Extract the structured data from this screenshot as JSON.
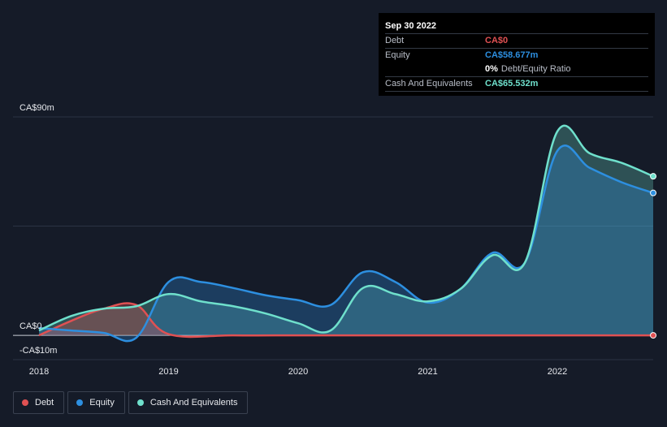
{
  "tooltip": {
    "date": "Sep 30 2022",
    "debt_label": "Debt",
    "debt_value": "CA$0",
    "equity_label": "Equity",
    "equity_value": "CA$58.677m",
    "ratio_value": "0%",
    "ratio_label": "Debt/Equity Ratio",
    "cash_label": "Cash And Equivalents",
    "cash_value": "CA$65.532m"
  },
  "legend": [
    {
      "name": "legend-debt",
      "label": "Debt",
      "color": "#e05153"
    },
    {
      "name": "legend-equity",
      "label": "Equity",
      "color": "#2d8fe0"
    },
    {
      "name": "legend-cash",
      "label": "Cash And Equivalents",
      "color": "#6fe0cc"
    }
  ],
  "chart_data": {
    "type": "area",
    "title": "",
    "xlabel": "",
    "ylabel": "",
    "ylim": [
      -10,
      90
    ],
    "y_tick_labels": [
      {
        "value": 90,
        "label": "CA$90m"
      },
      {
        "value": 0,
        "label": "CA$0"
      },
      {
        "value": -10,
        "label": "-CA$10m"
      }
    ],
    "x_ticks": [
      {
        "value": 2018,
        "label": "2018"
      },
      {
        "value": 2019,
        "label": "2019"
      },
      {
        "value": 2020,
        "label": "2020"
      },
      {
        "value": 2021,
        "label": "2021"
      },
      {
        "value": 2022,
        "label": "2022"
      }
    ],
    "xlim": [
      2017.96,
      2022.74
    ],
    "series": [
      {
        "name": "Cash And Equivalents",
        "color": "#6fe0cc",
        "points": [
          [
            2018.0,
            2.0
          ],
          [
            2018.25,
            8.0
          ],
          [
            2018.5,
            11.0
          ],
          [
            2018.75,
            12.0
          ],
          [
            2019.0,
            17.0
          ],
          [
            2019.25,
            14.0
          ],
          [
            2019.5,
            12.0
          ],
          [
            2019.75,
            9.0
          ],
          [
            2020.0,
            5.0
          ],
          [
            2020.25,
            2.0
          ],
          [
            2020.5,
            19.5
          ],
          [
            2020.75,
            17.0
          ],
          [
            2021.0,
            14.0
          ],
          [
            2021.25,
            19.0
          ],
          [
            2021.5,
            33.0
          ],
          [
            2021.75,
            30.0
          ],
          [
            2022.0,
            84.0
          ],
          [
            2022.25,
            75.0
          ],
          [
            2022.5,
            71.0
          ],
          [
            2022.74,
            65.532
          ]
        ]
      },
      {
        "name": "Equity",
        "color": "#2d8fe0",
        "points": [
          [
            2018.0,
            3.0
          ],
          [
            2018.25,
            2.0
          ],
          [
            2018.5,
            1.0
          ],
          [
            2018.75,
            -1.0
          ],
          [
            2019.0,
            22.0
          ],
          [
            2019.25,
            22.0
          ],
          [
            2019.5,
            19.5
          ],
          [
            2019.75,
            16.5
          ],
          [
            2020.0,
            14.5
          ],
          [
            2020.25,
            12.5
          ],
          [
            2020.5,
            26.0
          ],
          [
            2020.75,
            22.0
          ],
          [
            2021.0,
            13.5
          ],
          [
            2021.25,
            19.0
          ],
          [
            2021.5,
            34.0
          ],
          [
            2021.75,
            30.0
          ],
          [
            2022.0,
            76.0
          ],
          [
            2022.25,
            69.0
          ],
          [
            2022.5,
            63.0
          ],
          [
            2022.74,
            58.677
          ]
        ]
      },
      {
        "name": "Debt",
        "color": "#e05153",
        "points": [
          [
            2018.0,
            0.0
          ],
          [
            2018.25,
            6.0
          ],
          [
            2018.5,
            11.0
          ],
          [
            2018.75,
            12.5
          ],
          [
            2019.0,
            0.5
          ],
          [
            2019.5,
            0.0
          ],
          [
            2020.0,
            0.0
          ],
          [
            2020.5,
            0.0
          ],
          [
            2021.0,
            0.0
          ],
          [
            2021.5,
            0.0
          ],
          [
            2022.0,
            0.0
          ],
          [
            2022.5,
            0.0
          ],
          [
            2022.74,
            0.0
          ]
        ]
      }
    ]
  }
}
